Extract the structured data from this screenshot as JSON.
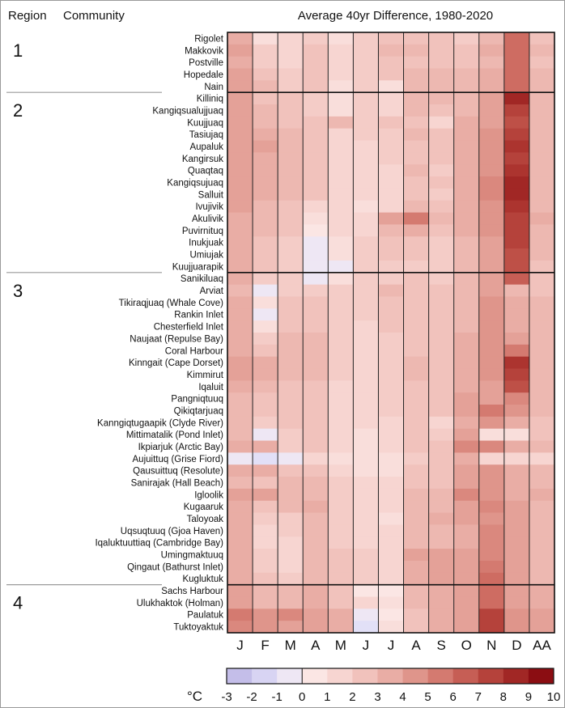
{
  "chart_data": {
    "type": "heatmap",
    "title": "Average 40yr Difference, 1980-2020",
    "header_region": "Region",
    "header_community": "Community",
    "colorbar_unit": "°C",
    "colorbar_ticks": [
      "-3",
      "-2",
      "-1",
      "0",
      "1",
      "2",
      "3",
      "4",
      "5",
      "6",
      "7",
      "8",
      "9",
      "10"
    ],
    "color_range": [
      -3,
      10
    ],
    "columns": [
      "J",
      "F",
      "M",
      "A",
      "M",
      "J",
      "J",
      "A",
      "S",
      "O",
      "N",
      "D",
      "AA"
    ],
    "regions": [
      {
        "label": "1",
        "communities": [
          {
            "name": "Rigolet",
            "values": [
              3.5,
              1.0,
              1.5,
              2.0,
              1.0,
              2.0,
              2.5,
              2.5,
              2.5,
              2.0,
              3.0,
              6.0,
              2.5
            ]
          },
          {
            "name": "Makkovik",
            "values": [
              4.0,
              2.0,
              1.5,
              2.5,
              1.5,
              2.0,
              3.0,
              3.0,
              2.5,
              2.5,
              3.5,
              6.0,
              3.0
            ]
          },
          {
            "name": "Postville",
            "values": [
              3.5,
              2.0,
              1.5,
              2.5,
              1.5,
              2.0,
              2.5,
              2.5,
              2.5,
              2.5,
              3.0,
              6.0,
              2.5
            ]
          },
          {
            "name": "Hopedale",
            "values": [
              4.0,
              2.5,
              2.0,
              2.5,
              1.5,
              2.0,
              2.5,
              3.0,
              3.0,
              3.0,
              3.5,
              6.0,
              3.0
            ]
          },
          {
            "name": "Nain",
            "values": [
              4.0,
              3.0,
              2.0,
              2.5,
              1.0,
              2.0,
              1.0,
              3.0,
              3.0,
              3.0,
              3.5,
              6.0,
              3.0
            ]
          }
        ]
      },
      {
        "label": "2",
        "communities": [
          {
            "name": "Killiniq",
            "values": [
              4.0,
              2.5,
              2.5,
              2.0,
              1.0,
              2.0,
              1.5,
              3.0,
              3.0,
              3.0,
              4.0,
              8.5,
              3.0
            ]
          },
          {
            "name": "Kangiqsualujjuaq",
            "values": [
              4.0,
              3.0,
              2.5,
              2.0,
              1.0,
              2.0,
              1.5,
              3.0,
              2.5,
              3.0,
              4.0,
              7.5,
              3.0
            ]
          },
          {
            "name": "Kuujjuaq",
            "values": [
              4.0,
              3.0,
              2.5,
              2.5,
              3.0,
              2.0,
              2.5,
              2.5,
              1.5,
              3.5,
              4.0,
              7.0,
              3.0
            ]
          },
          {
            "name": "Tasiujaq",
            "values": [
              4.0,
              3.5,
              3.0,
              2.5,
              1.5,
              2.0,
              2.0,
              3.0,
              2.5,
              3.5,
              4.5,
              7.5,
              3.0
            ]
          },
          {
            "name": "Aupaluk",
            "values": [
              4.0,
              4.0,
              3.0,
              2.5,
              1.5,
              1.5,
              2.0,
              2.5,
              2.5,
              3.5,
              4.5,
              8.0,
              3.0
            ]
          },
          {
            "name": "Kangirsuk",
            "values": [
              4.0,
              3.5,
              3.0,
              2.5,
              1.5,
              1.5,
              2.0,
              2.5,
              2.5,
              3.5,
              4.5,
              7.5,
              3.0
            ]
          },
          {
            "name": "Quaqtaq",
            "values": [
              4.0,
              3.5,
              3.0,
              2.5,
              1.5,
              1.5,
              1.5,
              3.0,
              2.0,
              3.5,
              4.5,
              8.0,
              3.0
            ]
          },
          {
            "name": "Kangiqsujuaq",
            "values": [
              4.0,
              3.5,
              3.0,
              2.5,
              1.5,
              1.5,
              1.5,
              2.5,
              2.5,
              3.5,
              5.0,
              8.5,
              3.0
            ]
          },
          {
            "name": "Salluit",
            "values": [
              4.0,
              3.5,
              3.0,
              2.5,
              1.5,
              1.5,
              1.5,
              2.5,
              2.0,
              3.5,
              5.0,
              8.5,
              3.0
            ]
          },
          {
            "name": "Ivujivik",
            "values": [
              4.0,
              3.0,
              2.5,
              1.5,
              1.5,
              1.0,
              1.5,
              3.0,
              2.5,
              3.5,
              4.5,
              8.0,
              3.0
            ]
          },
          {
            "name": "Akulivik",
            "values": [
              3.5,
              3.0,
              2.5,
              1.0,
              1.5,
              1.5,
              4.0,
              5.5,
              3.0,
              3.5,
              4.5,
              7.5,
              3.5
            ]
          },
          {
            "name": "Puvirnituq",
            "values": [
              3.5,
              3.0,
              2.5,
              0.5,
              1.5,
              1.5,
              3.0,
              3.5,
              2.5,
              3.5,
              4.5,
              7.5,
              3.0
            ]
          },
          {
            "name": "Inukjuak",
            "values": [
              3.5,
              2.5,
              2.0,
              -0.5,
              1.0,
              2.0,
              2.5,
              2.5,
              2.0,
              3.0,
              4.0,
              7.5,
              3.0
            ]
          },
          {
            "name": "Umiujak",
            "values": [
              3.5,
              2.5,
              2.0,
              -0.5,
              1.0,
              2.0,
              2.5,
              2.5,
              2.0,
              3.0,
              4.0,
              7.0,
              3.0
            ]
          },
          {
            "name": "Kuujjuarapik",
            "values": [
              3.5,
              2.5,
              2.0,
              -0.5,
              -0.5,
              2.0,
              2.0,
              2.0,
              2.0,
              3.0,
              4.0,
              7.0,
              2.5
            ]
          }
        ]
      },
      {
        "label": "3",
        "communities": [
          {
            "name": "Sanikiluaq",
            "values": [
              3.5,
              2.0,
              2.0,
              -0.5,
              1.0,
              2.0,
              2.0,
              2.5,
              2.0,
              3.0,
              4.0,
              6.5,
              2.5
            ]
          },
          {
            "name": "Arviat",
            "values": [
              3.0,
              -0.5,
              2.0,
              2.0,
              2.0,
              2.0,
              3.0,
              2.5,
              2.5,
              3.0,
              4.0,
              3.0,
              2.5
            ]
          },
          {
            "name": "Tikiraqjuaq (Whale Cove)",
            "values": [
              3.5,
              1.0,
              2.5,
              2.5,
              2.0,
              2.0,
              2.5,
              2.5,
              2.5,
              3.0,
              4.5,
              3.5,
              3.0
            ]
          },
          {
            "name": "Rankin Inlet",
            "values": [
              3.5,
              -0.5,
              2.5,
              2.5,
              2.0,
              2.0,
              2.5,
              2.5,
              2.5,
              3.0,
              4.5,
              3.5,
              3.0
            ]
          },
          {
            "name": "Chesterfield Inlet",
            "values": [
              3.5,
              1.0,
              2.5,
              2.5,
              2.0,
              1.5,
              2.5,
              2.5,
              2.5,
              3.0,
              4.5,
              3.5,
              3.0
            ]
          },
          {
            "name": "Naujaat (Repulse Bay)",
            "values": [
              3.5,
              2.0,
              3.0,
              3.0,
              2.0,
              1.5,
              2.0,
              2.5,
              2.5,
              3.5,
              4.5,
              4.0,
              3.0
            ]
          },
          {
            "name": "Coral Harbour",
            "values": [
              3.5,
              2.5,
              3.0,
              3.0,
              2.0,
              1.5,
              2.0,
              2.5,
              2.5,
              3.5,
              4.5,
              5.5,
              3.0
            ]
          },
          {
            "name": "Kinngait (Cape Dorset)",
            "values": [
              4.0,
              3.5,
              3.0,
              3.0,
              2.0,
              1.5,
              2.0,
              3.0,
              2.5,
              3.5,
              4.5,
              8.0,
              3.0
            ]
          },
          {
            "name": "Kimmirut",
            "values": [
              4.0,
              3.5,
              3.0,
              3.0,
              2.0,
              1.5,
              2.0,
              3.0,
              2.5,
              3.5,
              4.5,
              7.5,
              3.0
            ]
          },
          {
            "name": "Iqaluit",
            "values": [
              3.5,
              3.0,
              2.5,
              2.5,
              1.5,
              1.5,
              2.0,
              2.5,
              2.5,
              3.5,
              4.0,
              7.0,
              3.0
            ]
          },
          {
            "name": "Pangniqtuuq",
            "values": [
              3.0,
              2.5,
              2.5,
              2.5,
              1.5,
              1.5,
              2.0,
              2.5,
              2.5,
              4.0,
              4.0,
              5.0,
              3.0
            ]
          },
          {
            "name": "Qikiqtarjuaq",
            "values": [
              3.0,
              2.5,
              2.5,
              2.5,
              1.5,
              1.5,
              2.0,
              2.5,
              2.5,
              4.0,
              5.5,
              4.5,
              3.0
            ]
          },
          {
            "name": "Kanngiqtugaapik (Clyde River)",
            "values": [
              3.0,
              2.0,
              2.5,
              2.5,
              1.5,
              1.5,
              1.5,
              2.5,
              1.5,
              3.5,
              4.5,
              3.5,
              2.5
            ]
          },
          {
            "name": "Mittimatalik (Pond Inlet)",
            "values": [
              3.0,
              -0.5,
              2.0,
              2.5,
              1.5,
              1.0,
              1.5,
              2.5,
              2.0,
              4.0,
              1.0,
              1.0,
              2.5
            ]
          },
          {
            "name": "Ikpiarjuk (Arctic Bay)",
            "values": [
              3.5,
              3.5,
              2.0,
              2.5,
              1.5,
              1.0,
              1.5,
              2.5,
              2.5,
              5.0,
              5.0,
              3.5,
              3.0
            ]
          },
          {
            "name": "Aujuittuq (Grise Fiord)",
            "values": [
              -0.5,
              -1.0,
              -0.5,
              1.5,
              1.0,
              1.0,
              1.0,
              2.0,
              2.5,
              3.5,
              1.5,
              1.5,
              1.5
            ]
          },
          {
            "name": "Qausuittuq (Resolute)",
            "values": [
              3.5,
              3.5,
              2.5,
              2.5,
              1.5,
              1.0,
              1.0,
              2.5,
              2.5,
              4.0,
              4.5,
              3.5,
              3.0
            ]
          },
          {
            "name": "Sanirajak (Hall Beach)",
            "values": [
              3.0,
              2.5,
              3.0,
              3.0,
              2.0,
              1.5,
              1.5,
              2.5,
              2.5,
              4.0,
              4.5,
              3.5,
              3.0
            ]
          },
          {
            "name": "Igloolik",
            "values": [
              4.0,
              4.0,
              3.0,
              3.0,
              2.0,
              1.5,
              1.5,
              3.0,
              3.0,
              5.0,
              4.5,
              3.5,
              3.5
            ]
          },
          {
            "name": "Kugaaruk",
            "values": [
              3.5,
              2.5,
              3.0,
              3.5,
              2.0,
              1.5,
              1.5,
              3.0,
              3.0,
              4.0,
              5.0,
              4.0,
              3.0
            ]
          },
          {
            "name": "Taloyoak",
            "values": [
              3.5,
              2.0,
              2.0,
              3.0,
              2.0,
              1.5,
              1.0,
              3.0,
              3.5,
              4.0,
              4.5,
              4.0,
              3.0
            ]
          },
          {
            "name": "Uqsuqtuuq (Gjoa Haven)",
            "values": [
              3.5,
              1.5,
              2.0,
              3.0,
              2.0,
              1.5,
              1.5,
              3.0,
              3.0,
              3.5,
              5.0,
              4.0,
              3.0
            ]
          },
          {
            "name": "Iqaluktuuttiaq (Cambridge Bay)",
            "values": [
              3.5,
              1.5,
              1.5,
              3.0,
              2.0,
              1.5,
              1.5,
              3.0,
              3.0,
              3.5,
              5.0,
              4.0,
              3.0
            ]
          },
          {
            "name": "Umingmaktuuq",
            "values": [
              3.5,
              2.0,
              1.5,
              3.0,
              2.5,
              2.0,
              1.5,
              4.0,
              4.0,
              4.0,
              5.0,
              4.0,
              3.0
            ]
          },
          {
            "name": "Qingaut (Bathurst Inlet)",
            "values": [
              3.5,
              2.0,
              1.5,
              3.0,
              2.5,
              2.0,
              1.5,
              3.5,
              4.0,
              4.0,
              5.5,
              4.0,
              3.0
            ]
          },
          {
            "name": "Kugluktuk",
            "values": [
              3.5,
              2.5,
              2.0,
              3.0,
              2.5,
              2.0,
              1.5,
              3.5,
              4.0,
              4.0,
              6.0,
              4.0,
              3.0
            ]
          }
        ]
      },
      {
        "label": "4",
        "communities": [
          {
            "name": "Sachs Harbour",
            "values": [
              4.0,
              3.0,
              3.0,
              3.5,
              2.5,
              0.5,
              0.5,
              3.0,
              3.5,
              4.0,
              6.0,
              4.0,
              3.5
            ]
          },
          {
            "name": "Ulukhaktok (Holman)",
            "values": [
              4.0,
              3.0,
              3.0,
              3.5,
              2.5,
              1.5,
              1.0,
              3.0,
              3.5,
              4.0,
              6.0,
              4.0,
              3.5
            ]
          },
          {
            "name": "Paulatuk",
            "values": [
              5.5,
              4.5,
              5.0,
              4.0,
              3.5,
              -0.5,
              0.5,
              2.5,
              3.5,
              4.0,
              7.5,
              4.5,
              4.0
            ]
          },
          {
            "name": "Tuktoyaktuk",
            "values": [
              5.0,
              4.5,
              4.0,
              4.0,
              3.5,
              -1.0,
              1.0,
              2.5,
              3.5,
              4.0,
              7.5,
              4.5,
              4.0
            ]
          }
        ]
      }
    ]
  }
}
